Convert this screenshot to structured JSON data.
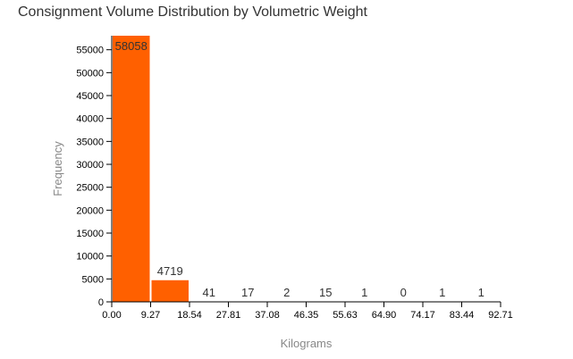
{
  "chart_data": {
    "type": "bar",
    "title": "Consignment Volume Distribution by Volumetric Weight",
    "xlabel": "Kilograms",
    "ylabel": "Frequency",
    "bin_edges": [
      "0.00",
      "9.27",
      "18.54",
      "27.81",
      "37.08",
      "46.35",
      "55.63",
      "64.90",
      "74.17",
      "83.44",
      "92.71"
    ],
    "values": [
      58058,
      4719,
      41,
      17,
      2,
      15,
      1,
      0,
      1,
      1
    ],
    "y_ticks": [
      0,
      5000,
      10000,
      15000,
      20000,
      25000,
      30000,
      35000,
      40000,
      45000,
      50000,
      55000
    ],
    "ylim": [
      0,
      58058
    ],
    "bar_color": "#ff6000",
    "grid": false,
    "legend": "none"
  }
}
